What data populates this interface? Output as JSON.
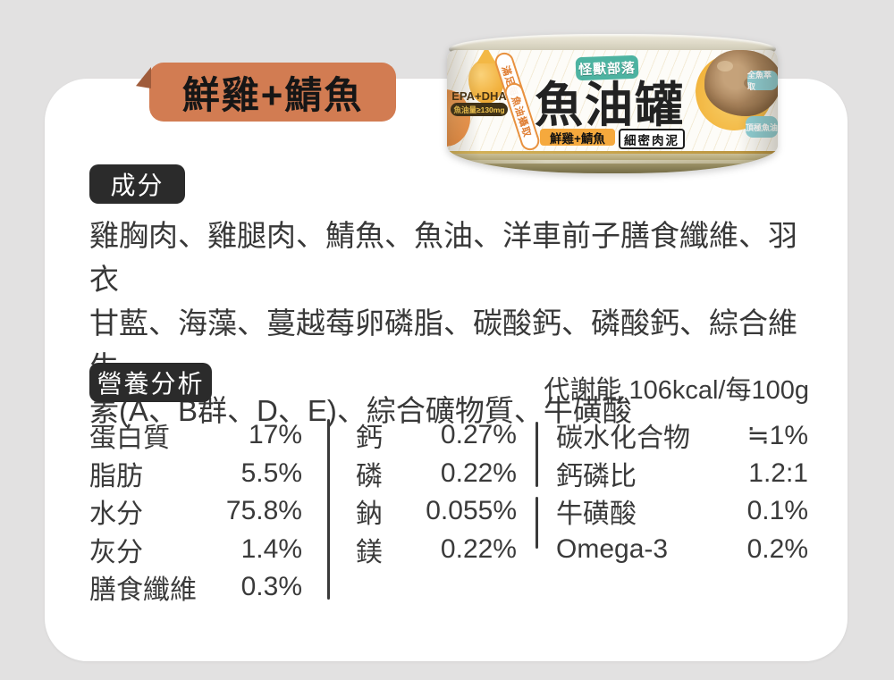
{
  "colors": {
    "background": "#e2e1e1",
    "card": "#ffffff",
    "flavor_badge": "#d27c52",
    "flavor_fold": "#a05c3b",
    "section_badge": "#2b2b2b",
    "text": "#3a3a3a",
    "can_brand_teal": "#4db3a1",
    "can_flavor_orange": "#f5a93d"
  },
  "header": {
    "flavor_badge_label": "鮮雞+鯖魚"
  },
  "can": {
    "brand_badge": "怪獸部落",
    "product_name": "魚油罐",
    "flavor_pill": "鮮雞+鯖魚",
    "texture_pill": "細密肉泥",
    "epa_label": "EPA+DHA",
    "oil_amount": "魚油量≥130mg",
    "ribbon_1": "滿足每日",
    "ribbon_2": "魚油攝取",
    "cloud_1": "全魚萃取",
    "cloud_2": "頂極魚油"
  },
  "ingredients": {
    "title": "成分",
    "lines": [
      "雞胸肉、雞腿肉、鯖魚、魚油、洋車前子膳食纖維、羽衣",
      "甘藍、海藻、蔓越莓卵磷脂、碳酸鈣、磷酸鈣、綜合維生",
      "素(A、B群、D、E)、綜合礦物質、牛磺酸"
    ]
  },
  "nutrition": {
    "title": "營養分析",
    "energy": "代謝能 106kcal/每100g",
    "col1": [
      {
        "label": "蛋白質",
        "value": "17%"
      },
      {
        "label": "脂肪",
        "value": "5.5%"
      },
      {
        "label": "水分",
        "value": "75.8%"
      },
      {
        "label": "灰分",
        "value": "1.4%"
      },
      {
        "label": "膳食纖維",
        "value": "0.3%"
      }
    ],
    "col2": [
      {
        "label": "鈣",
        "value": "0.27%"
      },
      {
        "label": "磷",
        "value": "0.22%"
      },
      {
        "label": "鈉",
        "value": "0.055%"
      },
      {
        "label": "鎂",
        "value": "0.22%"
      }
    ],
    "col3": [
      {
        "label": "碳水化合物",
        "value": "≒1%"
      },
      {
        "label": "鈣磷比",
        "value": "1.2:1"
      },
      {
        "label": "牛磺酸",
        "value": "0.1%"
      },
      {
        "label": "Omega-3",
        "value": "0.2%"
      }
    ]
  }
}
